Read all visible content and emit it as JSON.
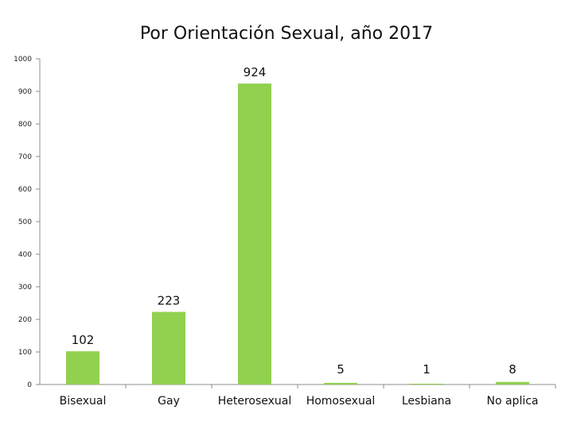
{
  "chart_data": {
    "type": "bar",
    "title": "Por Orientación Sexual, año 2017",
    "categories": [
      "Bisexual",
      "Gay",
      "Heterosexual",
      "Homosexual",
      "Lesbiana",
      "No aplica"
    ],
    "values": [
      102,
      223,
      924,
      5,
      1,
      8
    ],
    "data_labels": [
      "102",
      "223",
      "924",
      "5",
      "1",
      "8"
    ],
    "ylim": [
      0,
      1000
    ],
    "yticks": [
      "0",
      "100",
      "200",
      "300",
      "400",
      "500",
      "600",
      "700",
      "800",
      "900",
      "1000"
    ],
    "xlabel": "",
    "ylabel": "",
    "grid": false,
    "legend": "none",
    "bar_color": "#92d050"
  }
}
